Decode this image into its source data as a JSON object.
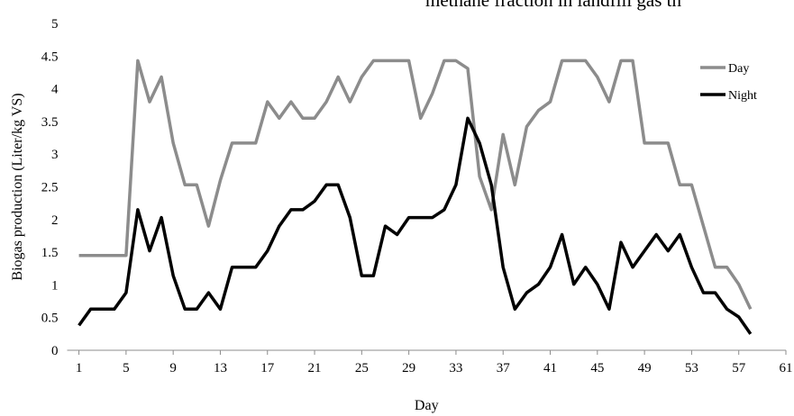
{
  "header_fragment": "methane fraction in landfill gas th",
  "chart_data": {
    "type": "line",
    "xlabel": "Day",
    "ylabel": "Biogas production (Liter/kg VS)",
    "xlim": [
      0,
      61
    ],
    "ylim": [
      0,
      5
    ],
    "x_ticks": [
      1,
      5,
      9,
      13,
      17,
      21,
      25,
      29,
      33,
      37,
      41,
      45,
      49,
      53,
      57,
      61
    ],
    "y_ticks": [
      "0",
      "0.5",
      "1",
      "1.5",
      "2",
      "2.5",
      "3",
      "3.5",
      "4",
      "4.5",
      "5"
    ],
    "grid": false,
    "legend_position": "top-right",
    "x": [
      1,
      2,
      3,
      4,
      5,
      6,
      7,
      8,
      9,
      10,
      11,
      12,
      13,
      14,
      15,
      16,
      17,
      18,
      19,
      20,
      21,
      22,
      23,
      24,
      25,
      26,
      27,
      28,
      29,
      30,
      31,
      32,
      33,
      34,
      35,
      36,
      37,
      38,
      39,
      40,
      41,
      42,
      43,
      44,
      45,
      46,
      47,
      48,
      49,
      50,
      51,
      52,
      53,
      54,
      55,
      56,
      57,
      58
    ],
    "series": [
      {
        "name": "Day",
        "color": "#8c8c8c",
        "values": [
          1.45,
          1.45,
          1.45,
          1.45,
          1.45,
          4.43,
          3.8,
          4.18,
          3.17,
          2.53,
          2.53,
          1.9,
          2.6,
          3.17,
          3.17,
          3.17,
          3.8,
          3.55,
          3.8,
          3.55,
          3.55,
          3.8,
          4.18,
          3.8,
          4.18,
          4.43,
          4.43,
          4.43,
          4.43,
          3.55,
          3.93,
          4.43,
          4.43,
          4.31,
          2.66,
          2.15,
          3.3,
          2.53,
          3.42,
          3.67,
          3.8,
          4.43,
          4.43,
          4.43,
          4.18,
          3.8,
          4.43,
          4.43,
          3.17,
          3.17,
          3.17,
          2.53,
          2.53,
          1.9,
          1.27,
          1.27,
          1.01,
          0.63
        ]
      },
      {
        "name": "Night",
        "color": "#000000",
        "values": [
          0.38,
          0.63,
          0.63,
          0.63,
          0.88,
          2.15,
          1.52,
          2.03,
          1.14,
          0.63,
          0.63,
          0.88,
          0.63,
          1.27,
          1.27,
          1.27,
          1.52,
          1.9,
          2.15,
          2.15,
          2.28,
          2.53,
          2.53,
          2.03,
          1.14,
          1.14,
          1.9,
          1.77,
          2.03,
          2.03,
          2.03,
          2.15,
          2.53,
          3.55,
          3.17,
          2.53,
          1.27,
          0.63,
          0.88,
          1.01,
          1.27,
          1.77,
          1.01,
          1.27,
          1.01,
          0.63,
          1.65,
          1.27,
          1.52,
          1.77,
          1.52,
          1.77,
          1.27,
          0.88,
          0.88,
          0.63,
          0.51,
          0.25
        ]
      }
    ]
  }
}
